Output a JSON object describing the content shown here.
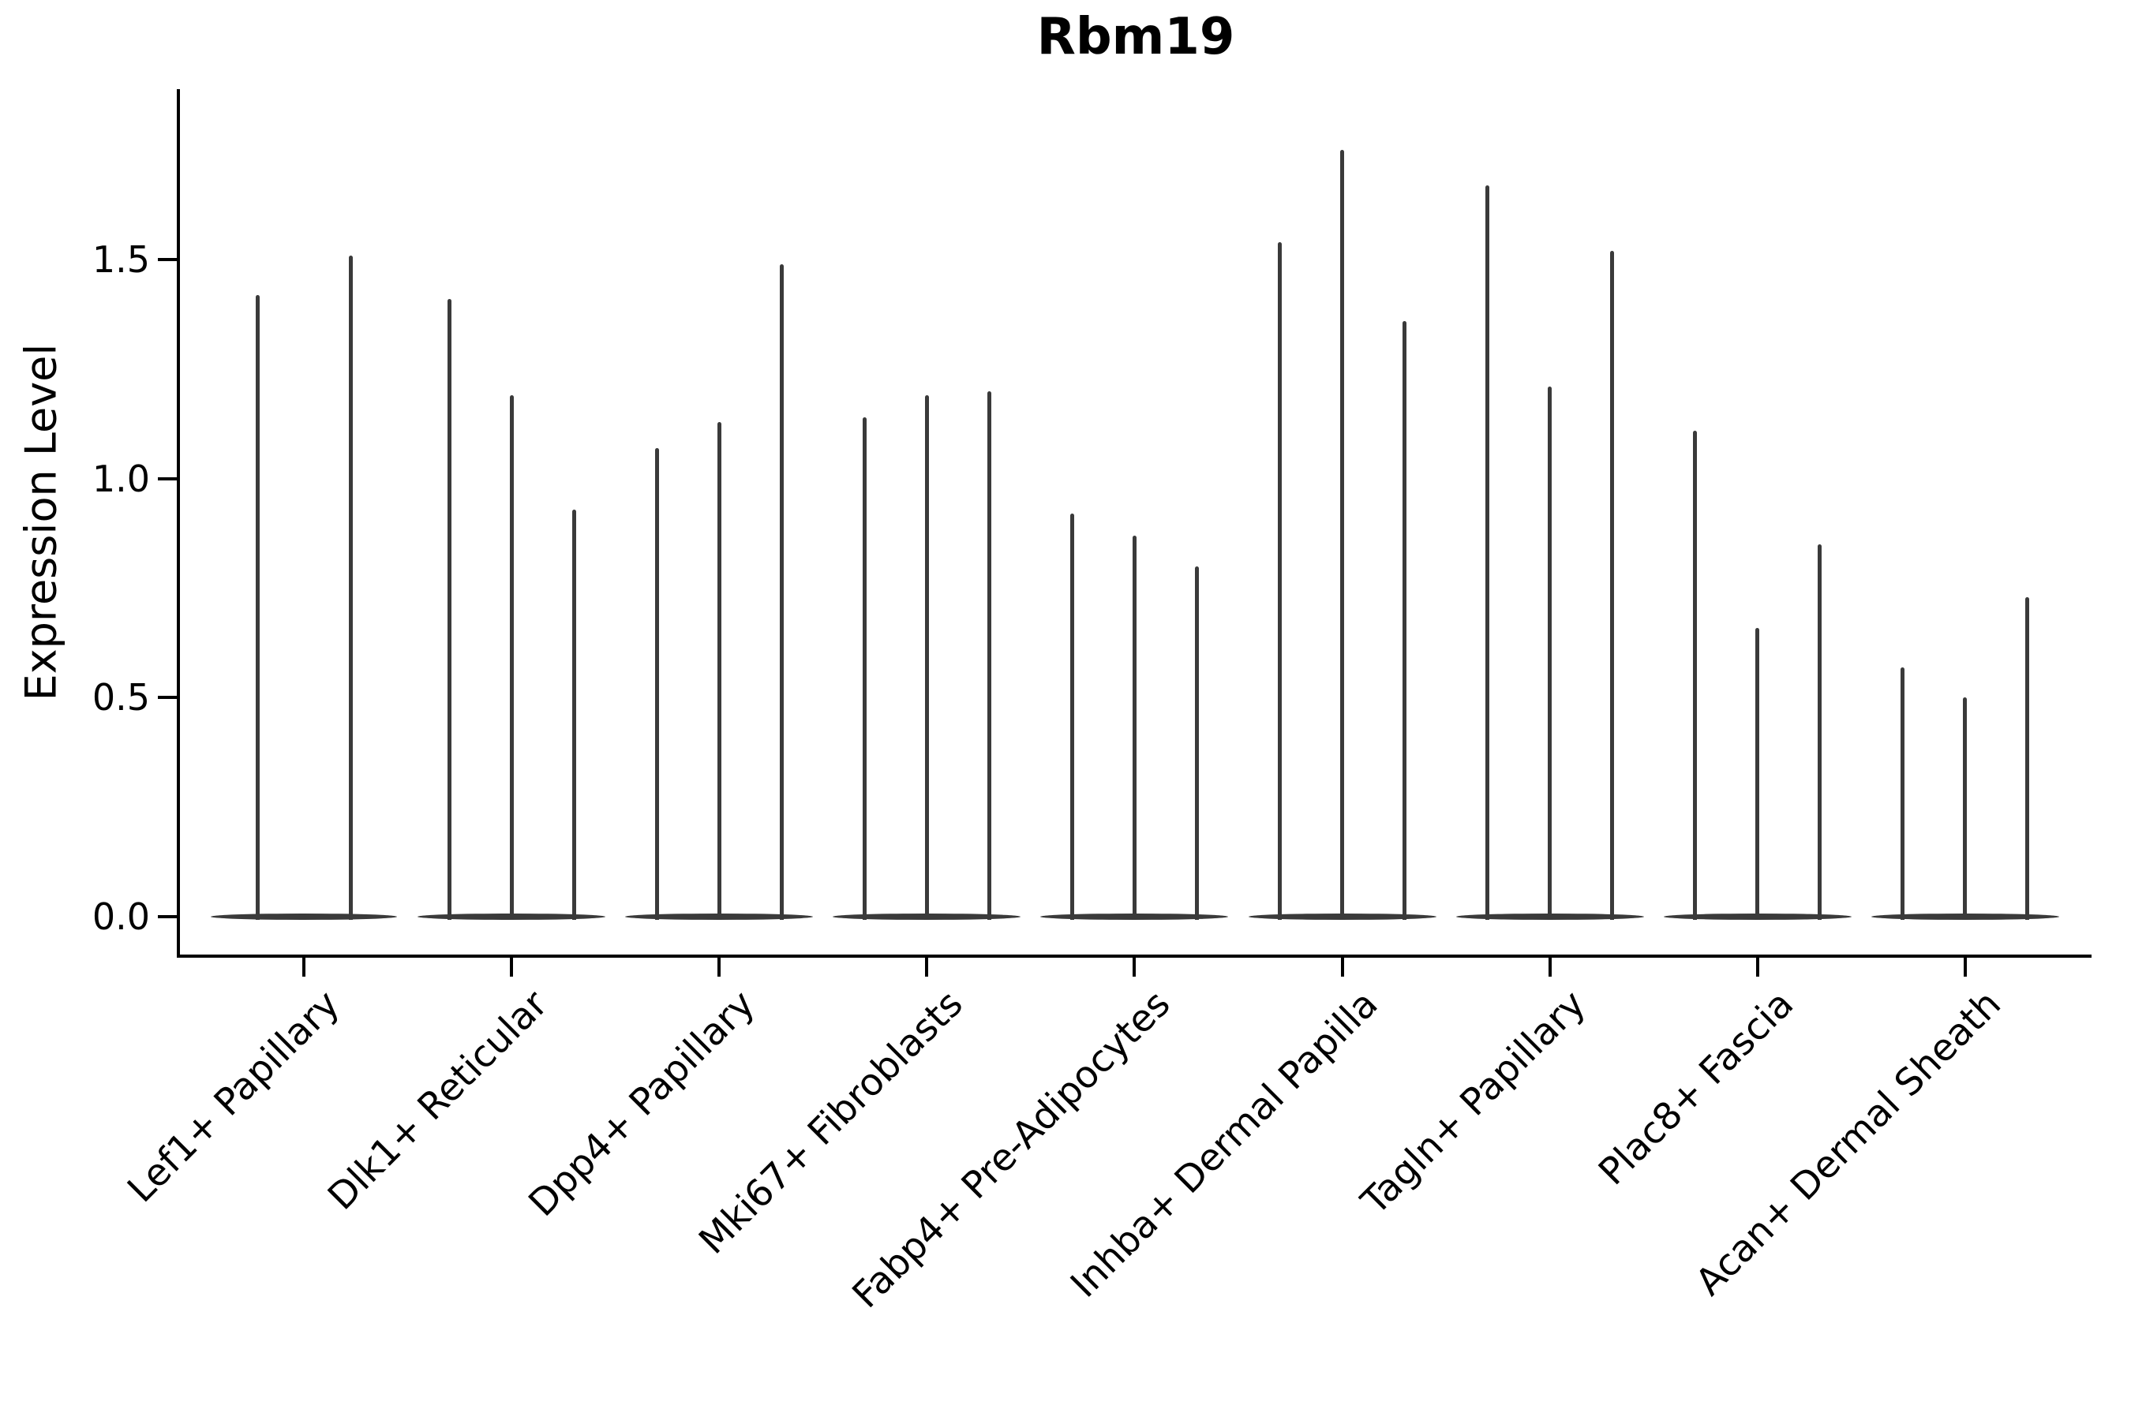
{
  "title": "Rbm19",
  "ylabel": "Expression Level",
  "chart_data": {
    "type": "violin",
    "title": "Rbm19",
    "xlabel": "",
    "ylabel": "Expression Level",
    "ylim": [
      -0.09,
      1.85
    ],
    "yticks": [
      0.0,
      0.5,
      1.0,
      1.5
    ],
    "ytick_labels": [
      "0.0",
      "0.5",
      "1.0",
      "1.5"
    ],
    "grid": false,
    "legend": "none",
    "description": "Violin plot of Rbm19 expression; each group shows 2-3 very thin violins (mass concentrated at 0 with a narrow spike up to the maximum expression value).",
    "categories": [
      "Lef1+ Papillary",
      "Dlk1+ Reticular",
      "Dpp4+ Papillary",
      "Mki67+ Fibroblasts",
      "Fabp4+ Pre-Adipocytes",
      "Inhba+ Dermal Papilla",
      "Tagln+ Papillary",
      "Plac8+ Fascia",
      "Acan+ Dermal Sheath"
    ],
    "series": [
      {
        "category": "Lef1+ Papillary",
        "violin_max_values": [
          1.42,
          1.51
        ]
      },
      {
        "category": "Dlk1+ Reticular",
        "violin_max_values": [
          1.41,
          1.19,
          0.93
        ]
      },
      {
        "category": "Dpp4+ Papillary",
        "violin_max_values": [
          1.07,
          1.13,
          1.49
        ]
      },
      {
        "category": "Mki67+ Fibroblasts",
        "violin_max_values": [
          1.14,
          1.19,
          1.2
        ]
      },
      {
        "category": "Fabp4+ Pre-Adipocytes",
        "violin_max_values": [
          0.92,
          0.87,
          0.8
        ]
      },
      {
        "category": "Inhba+ Dermal Papilla",
        "violin_max_values": [
          1.54,
          1.75,
          1.36
        ]
      },
      {
        "category": "Tagln+ Papillary",
        "violin_max_values": [
          1.67,
          1.21,
          1.52
        ]
      },
      {
        "category": "Plac8+ Fascia",
        "violin_max_values": [
          1.11,
          0.66,
          0.85
        ]
      },
      {
        "category": "Acan+ Dermal Sheath",
        "violin_max_values": [
          0.57,
          0.5,
          0.73
        ]
      }
    ],
    "violin_color": "#3a3a3a",
    "axis_color": "#000000"
  }
}
